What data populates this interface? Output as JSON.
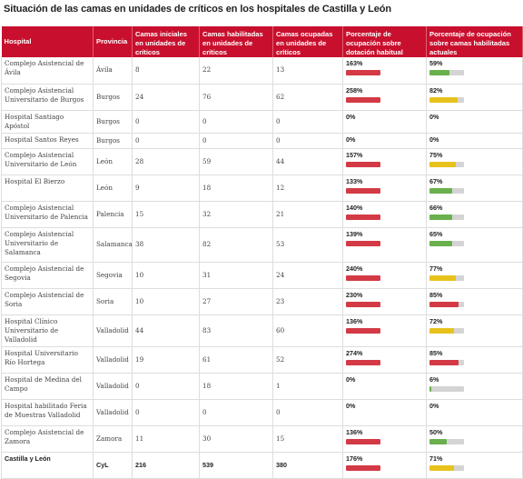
{
  "title": "Situación de las camas en unidades de críticos en los hospitales de Castilla y León",
  "headers": {
    "hospital": "Hospital",
    "provincia": "Provincia",
    "iniciales": "Camas iniciales en unidades de críticos",
    "habilitadas": "Camas habilitadas en unidades de críticos",
    "ocupadas": "Camas ocupadas en unidades de críticos",
    "pct_dotacion": "Porcentaje de ocupación sobre dotación habitual",
    "pct_habilitadas": "Porcentaje de ocupación sobre camas habilitadas actuales"
  },
  "colors": {
    "header": "#c8102e",
    "red": "#d33a45",
    "yellow": "#e8c21c",
    "green": "#6ab04c",
    "track": "#d4d4d4"
  },
  "rows": [
    {
      "hospital": "Complejo Asistencial de Ávila",
      "provincia": "Ávila",
      "iniciales": "8",
      "habilitadas": "22",
      "ocupadas": "13",
      "pct1": "163%",
      "pct1_value": 163,
      "pct2": "59%",
      "pct2_value": 59,
      "pct2_color": "green"
    },
    {
      "hospital": "Complejo Asistencial Universitario de Burgos",
      "provincia": "Burgos",
      "iniciales": "24",
      "habilitadas": "76",
      "ocupadas": "62",
      "pct1": "258%",
      "pct1_value": 258,
      "pct2": "82%",
      "pct2_value": 82,
      "pct2_color": "yellow"
    },
    {
      "hospital": "Hospital Santiago Apóstol",
      "provincia": "Burgos",
      "iniciales": "0",
      "habilitadas": "0",
      "ocupadas": "0",
      "pct1": "0%",
      "pct1_value": 0,
      "pct2": "0%",
      "pct2_value": 0,
      "pct2_color": "none"
    },
    {
      "hospital": "Hospital Santos Reyes",
      "provincia": "Burgos",
      "iniciales": "0",
      "habilitadas": "0",
      "ocupadas": "0",
      "pct1": "0%",
      "pct1_value": 0,
      "pct2": "0%",
      "pct2_value": 0,
      "pct2_color": "none"
    },
    {
      "hospital": "Complejo Asistencial Universitario de León",
      "provincia": "León",
      "iniciales": "28",
      "habilitadas": "59",
      "ocupadas": "44",
      "pct1": "157%",
      "pct1_value": 157,
      "pct2": "75%",
      "pct2_value": 75,
      "pct2_color": "yellow"
    },
    {
      "hospital": "Hospital El Bierzo",
      "provincia": "León",
      "iniciales": "9",
      "habilitadas": "18",
      "ocupadas": "12",
      "pct1": "133%",
      "pct1_value": 133,
      "pct2": "67%",
      "pct2_value": 67,
      "pct2_color": "green"
    },
    {
      "hospital": "Complejo Asistencial Universitario de Palencia",
      "provincia": "Palencia",
      "iniciales": "15",
      "habilitadas": "32",
      "ocupadas": "21",
      "pct1": "140%",
      "pct1_value": 140,
      "pct2": "66%",
      "pct2_value": 66,
      "pct2_color": "green"
    },
    {
      "hospital": "Complejo Asistencial Universitario de Salamanca",
      "provincia": "Salamanca",
      "iniciales": "38",
      "habilitadas": "82",
      "ocupadas": "53",
      "pct1": "139%",
      "pct1_value": 139,
      "pct2": "65%",
      "pct2_value": 65,
      "pct2_color": "green"
    },
    {
      "hospital": "Complejo Asistencial de Segovia",
      "provincia": "Segovia",
      "iniciales": "10",
      "habilitadas": "31",
      "ocupadas": "24",
      "pct1": "240%",
      "pct1_value": 240,
      "pct2": "77%",
      "pct2_value": 77,
      "pct2_color": "yellow"
    },
    {
      "hospital": "Complejo Asistencial de Soria",
      "provincia": "Soria",
      "iniciales": "10",
      "habilitadas": "27",
      "ocupadas": "23",
      "pct1": "230%",
      "pct1_value": 230,
      "pct2": "85%",
      "pct2_value": 85,
      "pct2_color": "red"
    },
    {
      "hospital": "Hospital Clínico Universitario de Valladolid",
      "provincia": "Valladolid",
      "iniciales": "44",
      "habilitadas": "83",
      "ocupadas": "60",
      "pct1": "136%",
      "pct1_value": 136,
      "pct2": "72%",
      "pct2_value": 72,
      "pct2_color": "yellow"
    },
    {
      "hospital": "Hospital Universitario Río Hortega",
      "provincia": "Valladolid",
      "iniciales": "19",
      "habilitadas": "61",
      "ocupadas": "52",
      "pct1": "274%",
      "pct1_value": 274,
      "pct2": "85%",
      "pct2_value": 85,
      "pct2_color": "red"
    },
    {
      "hospital": "Hospital de Medina del Campo",
      "provincia": "Valladolid",
      "iniciales": "0",
      "habilitadas": "18",
      "ocupadas": "1",
      "pct1": "0%",
      "pct1_value": 0,
      "pct2": "6%",
      "pct2_value": 6,
      "pct2_color": "green"
    },
    {
      "hospital": "Hospital habilitado Feria de Muestras Valladolid",
      "provincia": "Valladolid",
      "iniciales": "0",
      "habilitadas": "0",
      "ocupadas": "0",
      "pct1": "0%",
      "pct1_value": 0,
      "pct2": "0%",
      "pct2_value": 0,
      "pct2_color": "none"
    },
    {
      "hospital": "Complejo Asistencial de Zamora",
      "provincia": "Zamora",
      "iniciales": "11",
      "habilitadas": "30",
      "ocupadas": "15",
      "pct1": "136%",
      "pct1_value": 136,
      "pct2": "50%",
      "pct2_value": 50,
      "pct2_color": "green"
    }
  ],
  "total": {
    "hospital": "Castilla y León",
    "provincia": "CyL",
    "iniciales": "216",
    "habilitadas": "539",
    "ocupadas": "380",
    "pct1": "176%",
    "pct1_value": 176,
    "pct2": "71%",
    "pct2_value": 71,
    "pct2_color": "yellow"
  }
}
